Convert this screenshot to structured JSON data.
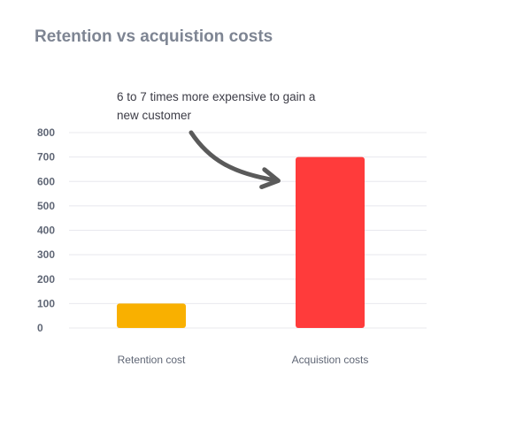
{
  "chart_data": {
    "type": "bar",
    "title": "Retention vs acquistion costs",
    "annotation": "6 to 7 times more expensive to gain a new customer",
    "categories": [
      "Retention cost",
      "Acquistion costs"
    ],
    "values": [
      100,
      700
    ],
    "colors": [
      "#f9b000",
      "#ff3b3b"
    ],
    "ylim": [
      0,
      800
    ],
    "yticks": [
      0,
      100,
      200,
      300,
      400,
      500,
      600,
      700,
      800
    ],
    "xlabel": "",
    "ylabel": "",
    "grid": true,
    "grid_color": "#e8e8ee",
    "arrow_color": "#5a5a5a"
  }
}
